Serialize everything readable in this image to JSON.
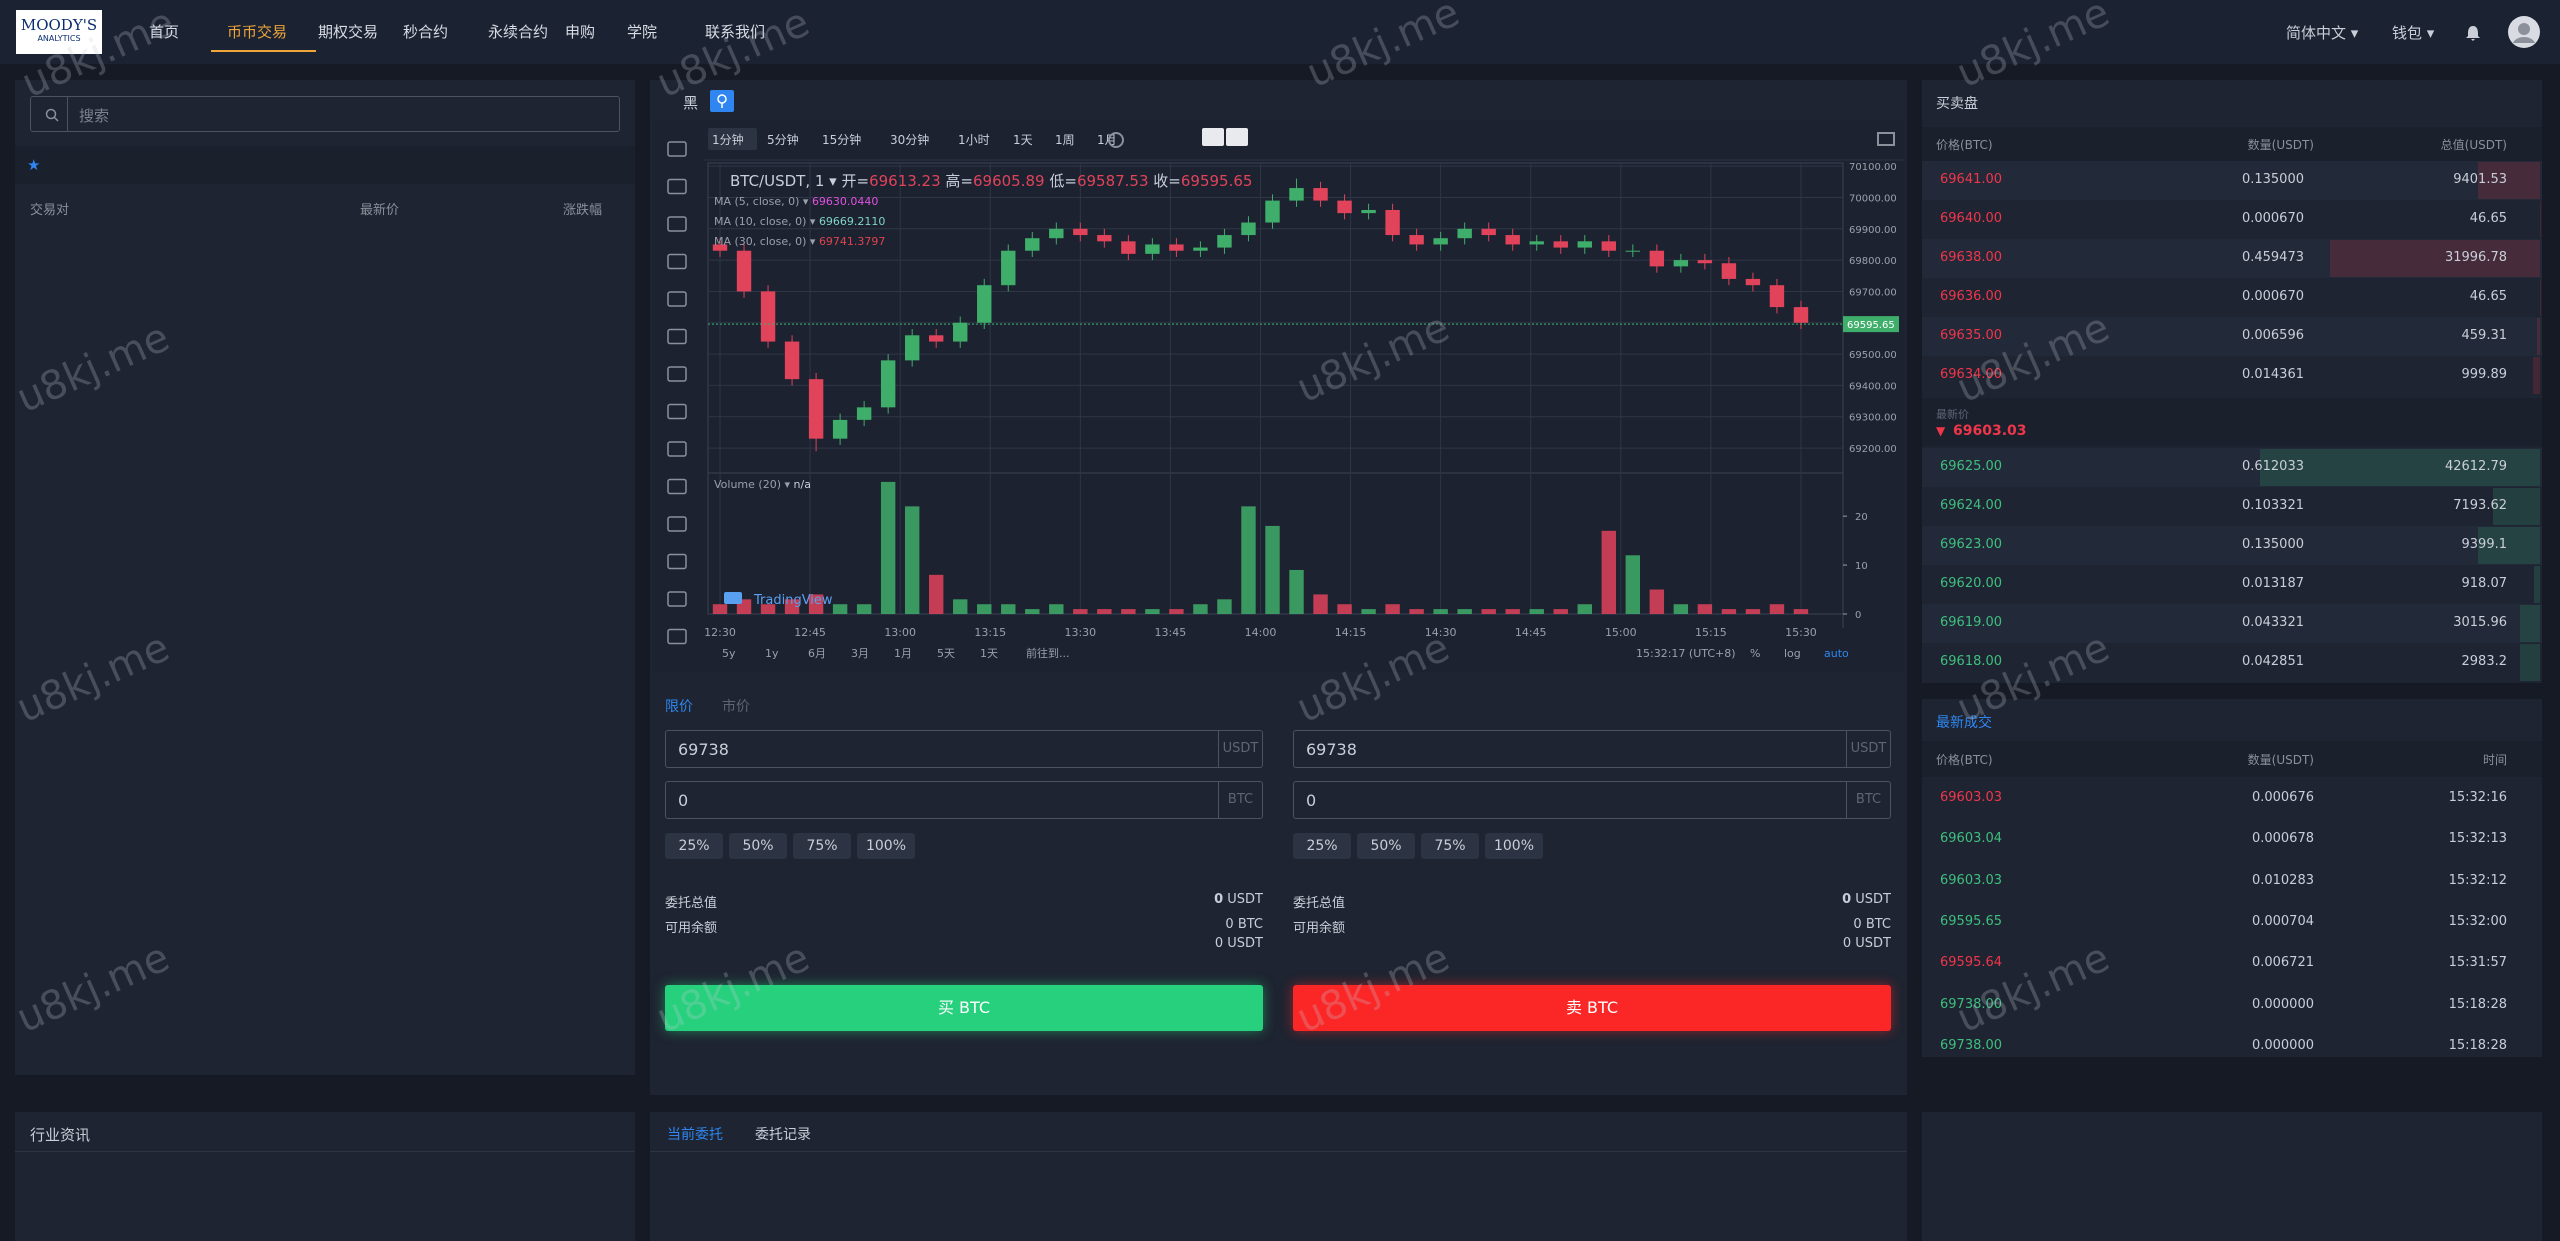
{
  "nav": {
    "logo_top": "MOODY'S",
    "logo_bottom": "ANALYTICS",
    "items": [
      "首页",
      "币币交易",
      "期权交易",
      "秒合约",
      "永续合约",
      "申购",
      "学院",
      "联系我们"
    ],
    "active": 1,
    "language": "简体中文",
    "wallet": "钱包"
  },
  "watermark": "u8kj.me",
  "market": {
    "search_placeholder": "搜索",
    "star": "★",
    "columns": [
      "交易对",
      "最新价",
      "涨跌幅"
    ]
  },
  "chart": {
    "type": "candlestick",
    "theme_label": "黑",
    "intervals": [
      "1分钟",
      "5分钟",
      "15分钟",
      "30分钟",
      "1小时",
      "1天",
      "1周",
      "1月"
    ],
    "active_interval": 0,
    "symbol": "BTC/USDT, 1",
    "open_label": "开=",
    "open": 69613.23,
    "high_label": "高=",
    "high": 69605.89,
    "low_label": "低=",
    "low": 69587.53,
    "close_label": "收=",
    "close": 69595.65,
    "ma": [
      {
        "label": "MA (5, close, 0)",
        "value": "69630.0440",
        "color": "#e052e0"
      },
      {
        "label": "MA (10, close, 0)",
        "value": "69669.2110",
        "color": "#7fd4c8"
      },
      {
        "label": "MA (30, close, 0)",
        "value": "69741.3797",
        "color": "#e0434f"
      }
    ],
    "volume_label": "Volume (20)",
    "volume_na": "n/a",
    "brand": "TradingView",
    "up_color": "#3fae6a",
    "down_color": "#e0435a",
    "xlim": [
      -2,
      187
    ],
    "xticks": [
      {
        "value": 0,
        "label": "12:30"
      },
      {
        "value": 15,
        "label": "12:45"
      },
      {
        "value": 30,
        "label": "13:00"
      },
      {
        "value": 45,
        "label": "13:15"
      },
      {
        "value": 60,
        "label": "13:30"
      },
      {
        "value": 75,
        "label": "13:45"
      },
      {
        "value": 90,
        "label": "14:00"
      },
      {
        "value": 105,
        "label": "14:15"
      },
      {
        "value": 120,
        "label": "14:30"
      },
      {
        "value": 135,
        "label": "14:45"
      },
      {
        "value": 150,
        "label": "15:00"
      },
      {
        "value": 165,
        "label": "15:15"
      },
      {
        "value": 180,
        "label": "15:30"
      }
    ],
    "ylim": [
      69130,
      70110
    ],
    "yticks": [
      {
        "value": 69200,
        "label": "69200.00"
      },
      {
        "value": 69300,
        "label": "69300.00"
      },
      {
        "value": 69400,
        "label": "69400.00"
      },
      {
        "value": 69500,
        "label": "69500.00"
      },
      {
        "value": 69600,
        "label": "69600.00"
      },
      {
        "value": 69700,
        "label": "69700.00"
      },
      {
        "value": 69800,
        "label": "69800.00"
      },
      {
        "value": 69900,
        "label": "69900.00"
      },
      {
        "value": 70000,
        "label": "70000.00"
      },
      {
        "value": 70100,
        "label": "70100.00"
      }
    ],
    "volume_ylim": [
      0,
      28
    ],
    "volume_yticks": [
      0,
      10,
      20
    ],
    "x": [
      0,
      4,
      8,
      12,
      16,
      20,
      24,
      28,
      32,
      36,
      40,
      44,
      48,
      52,
      56,
      60,
      64,
      68,
      72,
      76,
      80,
      84,
      88,
      92,
      96,
      100,
      104,
      108,
      112,
      116,
      120,
      124,
      128,
      132,
      136,
      140,
      144,
      148,
      152,
      156,
      160,
      164,
      168,
      172,
      176,
      180
    ],
    "opens": [
      69850,
      69830,
      69700,
      69540,
      69420,
      69230,
      69290,
      69330,
      69480,
      69560,
      69540,
      69600,
      69720,
      69830,
      69870,
      69900,
      69880,
      69860,
      69820,
      69850,
      69830,
      69840,
      69880,
      69920,
      69990,
      70030,
      69990,
      69950,
      69960,
      69880,
      69850,
      69870,
      69900,
      69880,
      69850,
      69860,
      69840,
      69860,
      69830,
      69830,
      69780,
      69800,
      69790,
      69740,
      69720,
      69650
    ],
    "highs": [
      69870,
      69850,
      69720,
      69560,
      69440,
      69310,
      69350,
      69500,
      69580,
      69580,
      69620,
      69740,
      69850,
      69890,
      69920,
      69920,
      69900,
      69880,
      69870,
      69870,
      69860,
      69900,
      69940,
      70010,
      70060,
      70050,
      70010,
      69980,
      69980,
      69900,
      69890,
      69920,
      69920,
      69900,
      69880,
      69880,
      69880,
      69880,
      69850,
      69850,
      69820,
      69820,
      69810,
      69760,
      69740,
      69670
    ],
    "lows": [
      69810,
      69680,
      69520,
      69400,
      69190,
      69210,
      69270,
      69310,
      69460,
      69520,
      69520,
      69580,
      69700,
      69810,
      69850,
      69860,
      69840,
      69800,
      69800,
      69810,
      69810,
      69820,
      69860,
      69900,
      69970,
      69970,
      69930,
      69930,
      69860,
      69830,
      69830,
      69850,
      69860,
      69830,
      69830,
      69820,
      69820,
      69810,
      69810,
      69760,
      69760,
      69770,
      69720,
      69700,
      69630,
      69580
    ],
    "closes": [
      69830,
      69700,
      69540,
      69420,
      69230,
      69290,
      69330,
      69480,
      69560,
      69540,
      69600,
      69720,
      69830,
      69870,
      69900,
      69880,
      69860,
      69820,
      69850,
      69830,
      69840,
      69880,
      69920,
      69990,
      70030,
      69990,
      69950,
      69960,
      69880,
      69850,
      69870,
      69900,
      69880,
      69850,
      69860,
      69840,
      69860,
      69830,
      69830,
      69780,
      69800,
      69790,
      69740,
      69720,
      69650,
      69600
    ],
    "volumes": [
      2,
      3,
      2,
      3,
      4,
      2,
      2,
      27,
      22,
      8,
      3,
      2,
      2,
      1,
      2,
      1,
      1,
      1,
      1,
      1,
      2,
      3,
      22,
      18,
      9,
      4,
      2,
      1,
      2,
      1,
      1,
      1,
      1,
      1,
      1,
      1,
      2,
      17,
      12,
      5,
      2,
      2,
      1,
      1,
      2,
      1
    ],
    "ranges": [
      "5y",
      "1y",
      "6月",
      "3月",
      "1月",
      "5天",
      "1天",
      "前往到..."
    ],
    "clock": "15:32:17 (UTC+8)",
    "percent": "%",
    "log": "log",
    "auto": "auto"
  },
  "order_form": {
    "tabs": [
      "限价",
      "市价"
    ],
    "buy": {
      "price": "69738",
      "price_unit": "USDT",
      "amount": "0",
      "amount_unit": "BTC",
      "percents": [
        "25%",
        "50%",
        "75%",
        "100%"
      ],
      "total_label": "委托总值",
      "total_value": "0",
      "total_unit": "USDT",
      "balance_label": "可用余额",
      "balances": [
        "0 BTC",
        "0 USDT"
      ],
      "button": "买 BTC"
    },
    "sell": {
      "price": "69738",
      "price_unit": "USDT",
      "amount": "0",
      "amount_unit": "BTC",
      "percents": [
        "25%",
        "50%",
        "75%",
        "100%"
      ],
      "total_label": "委托总值",
      "total_value": "0",
      "total_unit": "USDT",
      "balance_label": "可用余额",
      "balances": [
        "0 BTC",
        "0 USDT"
      ],
      "button": "卖 BTC"
    }
  },
  "order_book": {
    "title": "买卖盘",
    "columns": [
      "价格(BTC)",
      "数量(USDT)",
      "总值(USDT)"
    ],
    "asks": [
      {
        "price": "69641.00",
        "amount": "0.135000",
        "total": 9401.53
      },
      {
        "price": "69640.00",
        "amount": "0.000670",
        "total": 46.65
      },
      {
        "price": "69638.00",
        "amount": "0.459473",
        "total": 31996.78
      },
      {
        "price": "69636.00",
        "amount": "0.000670",
        "total": 46.65
      },
      {
        "price": "69635.00",
        "amount": "0.006596",
        "total": 459.31
      },
      {
        "price": "69634.00",
        "amount": "0.014361",
        "total": 999.89
      }
    ],
    "last_label": "最新价",
    "last_price": "69603.03",
    "bids": [
      {
        "price": "69625.00",
        "amount": "0.612033",
        "total": 42612.79
      },
      {
        "price": "69624.00",
        "amount": "0.103321",
        "total": 7193.62
      },
      {
        "price": "69623.00",
        "amount": "0.135000",
        "total": 9399.1
      },
      {
        "price": "69620.00",
        "amount": "0.013187",
        "total": 918.07
      },
      {
        "price": "69619.00",
        "amount": "0.043321",
        "total": 3015.96
      },
      {
        "price": "69618.00",
        "amount": "0.042851",
        "total": 2983.2
      }
    ]
  },
  "trades": {
    "title": "最新成交",
    "columns": [
      "价格(BTC)",
      "数量(USDT)",
      "时间"
    ],
    "rows": [
      {
        "price": "69603.03",
        "side": "sell",
        "amount": "0.000676",
        "time": "15:32:16"
      },
      {
        "price": "69603.04",
        "side": "buy",
        "amount": "0.000678",
        "time": "15:32:13"
      },
      {
        "price": "69603.03",
        "side": "buy",
        "amount": "0.010283",
        "time": "15:32:12"
      },
      {
        "price": "69595.65",
        "side": "buy",
        "amount": "0.000704",
        "time": "15:32:00"
      },
      {
        "price": "69595.64",
        "side": "sell",
        "amount": "0.006721",
        "time": "15:31:57"
      },
      {
        "price": "69738.00",
        "side": "buy",
        "amount": "0.000000",
        "time": "15:18:28"
      },
      {
        "price": "69738.00",
        "side": "buy",
        "amount": "0.000000",
        "time": "15:18:28"
      }
    ]
  },
  "news": {
    "title": "行业资讯"
  },
  "orders": {
    "tabs": [
      "当前委托",
      "委托记录"
    ]
  }
}
